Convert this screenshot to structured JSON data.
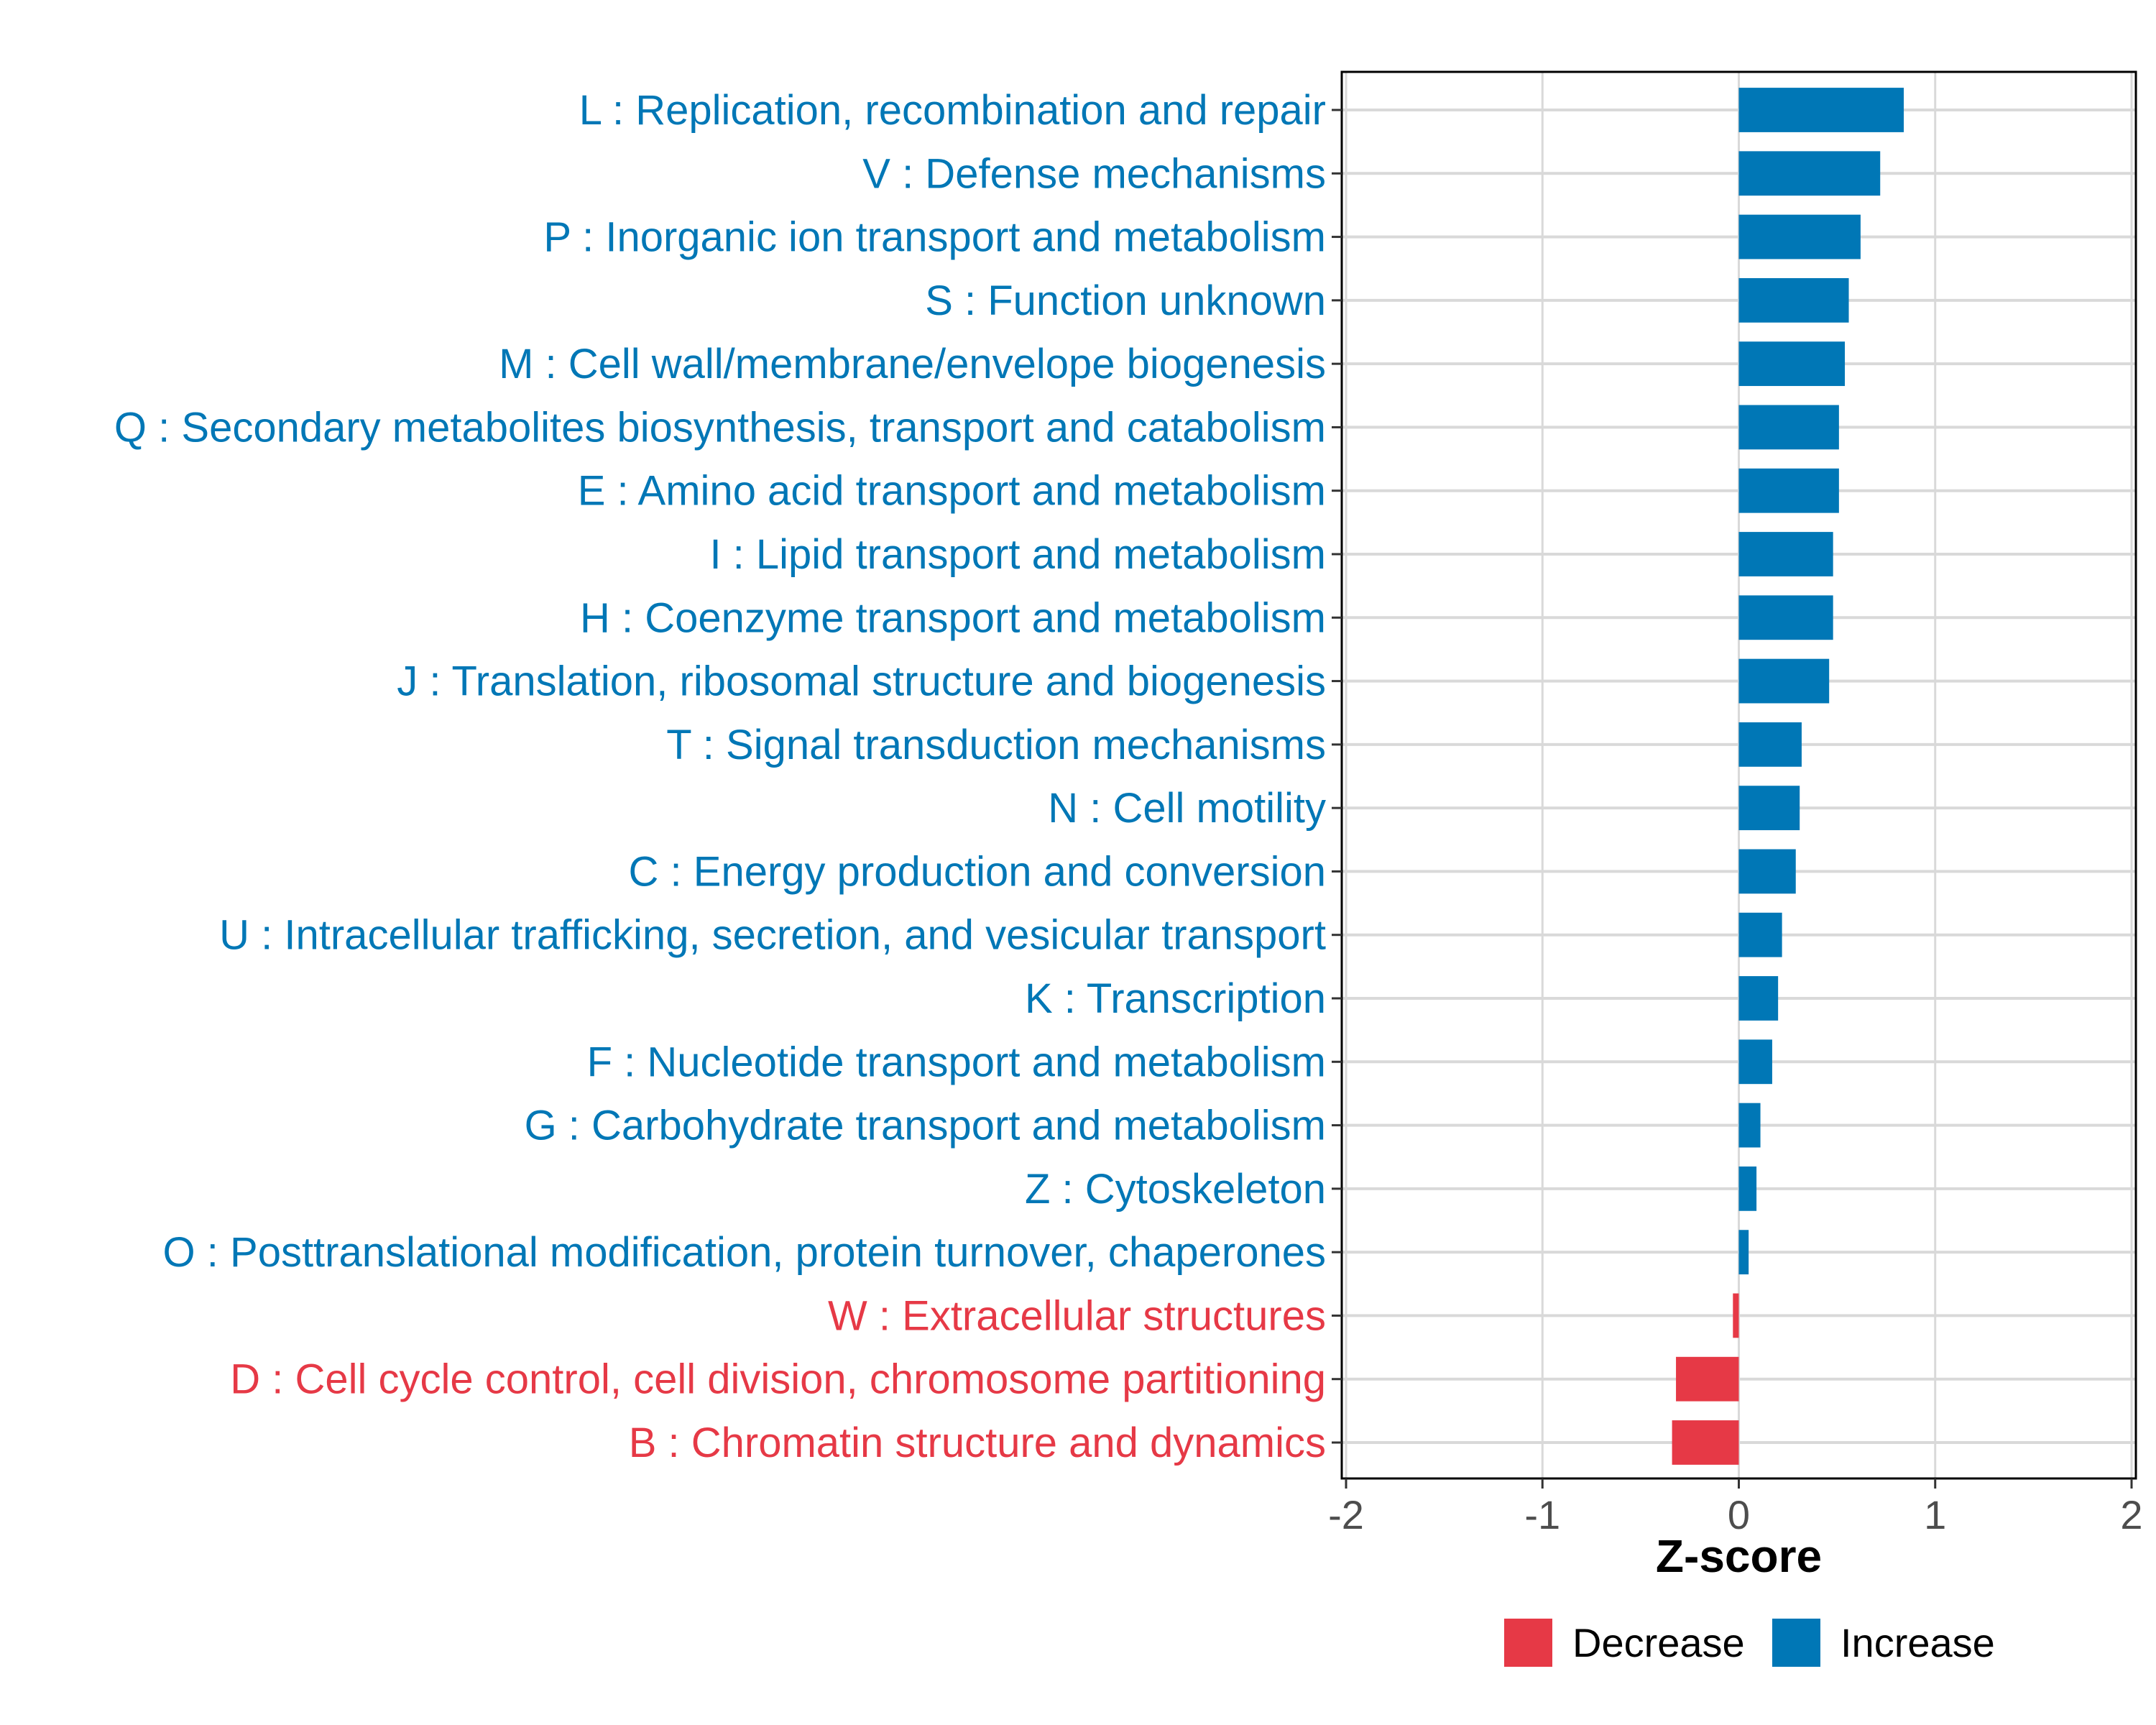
{
  "chart_data": {
    "type": "bar",
    "orientation": "horizontal",
    "title": "",
    "xlabel": "Z-score",
    "ylabel": "",
    "xlim": [
      -2,
      2
    ],
    "xticks": [
      "-2",
      "-1",
      "0",
      "1",
      "2"
    ],
    "grid": true,
    "legend_position": "bottom",
    "legend": [
      {
        "label": "Decrease",
        "color": "#E63946"
      },
      {
        "label": "Increase",
        "color": "#0077B6"
      }
    ],
    "colors": {
      "Decrease": "#E63946",
      "Increase": "#0077B6"
    },
    "categories": [
      "L : Replication, recombination and repair",
      "V : Defense mechanisms",
      "P : Inorganic ion transport and metabolism",
      "S : Function unknown",
      "M : Cell wall/membrane/envelope biogenesis",
      "Q : Secondary metabolites biosynthesis, transport and catabolism",
      "E : Amino acid transport and metabolism",
      "I : Lipid transport and metabolism",
      "H : Coenzyme transport and metabolism",
      "J : Translation, ribosomal structure and biogenesis",
      "T : Signal transduction mechanisms",
      "N : Cell motility",
      "C : Energy production and conversion",
      "U : Intracellular trafficking, secretion, and vesicular transport",
      "K : Transcription",
      "F : Nucleotide transport and metabolism",
      "G : Carbohydrate transport and metabolism",
      "Z : Cytoskeleton",
      "O : Posttranslational modification, protein turnover, chaperones",
      "W : Extracellular structures",
      "D : Cell cycle control, cell division, chromosome partitioning",
      "B : Chromatin structure and dynamics"
    ],
    "values": [
      0.84,
      0.72,
      0.62,
      0.56,
      0.54,
      0.51,
      0.51,
      0.48,
      0.48,
      0.46,
      0.32,
      0.31,
      0.29,
      0.22,
      0.2,
      0.17,
      0.11,
      0.09,
      0.05,
      -0.03,
      -0.32,
      -0.34
    ],
    "groups": [
      "Increase",
      "Increase",
      "Increase",
      "Increase",
      "Increase",
      "Increase",
      "Increase",
      "Increase",
      "Increase",
      "Increase",
      "Increase",
      "Increase",
      "Increase",
      "Increase",
      "Increase",
      "Increase",
      "Increase",
      "Increase",
      "Increase",
      "Decrease",
      "Decrease",
      "Decrease"
    ]
  }
}
